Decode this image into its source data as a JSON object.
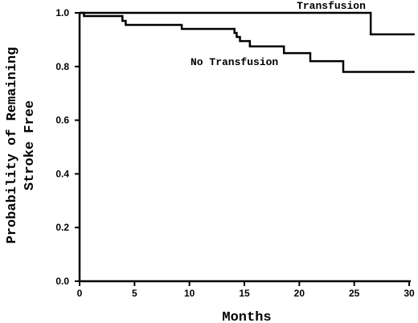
{
  "chart_data": {
    "type": "line",
    "step": true,
    "xlabel": "Months",
    "ylabel_lines": [
      "Probability of Remaining",
      "Stroke Free"
    ],
    "xlim": [
      0,
      30
    ],
    "ylim": [
      0,
      1.0
    ],
    "xticks": [
      0,
      5,
      10,
      15,
      20,
      25,
      30
    ],
    "xtick_labels": [
      "0",
      "5",
      "10",
      "15",
      "20",
      "25",
      "30"
    ],
    "yticks": [
      0,
      0.2,
      0.4,
      0.6,
      0.8,
      1.0
    ],
    "ytick_labels": [
      "0.0",
      "0.2",
      "0.4",
      "0.6",
      "0.8",
      "1.0"
    ],
    "grid": false,
    "series": [
      {
        "name": "Transfusion",
        "x": [
          0,
          26.5,
          26.5,
          30.5
        ],
        "y": [
          1.0,
          1.0,
          0.92,
          0.92
        ]
      },
      {
        "name": "No Transfusion",
        "x": [
          0,
          0.4,
          3.9,
          4.2,
          9.3,
          14.1,
          14.3,
          14.6,
          15.5,
          18.6,
          21.0,
          24.0,
          30.5
        ],
        "y": [
          1.0,
          0.988,
          0.97,
          0.955,
          0.94,
          0.925,
          0.91,
          0.895,
          0.875,
          0.85,
          0.82,
          0.78,
          0.78
        ]
      }
    ]
  }
}
